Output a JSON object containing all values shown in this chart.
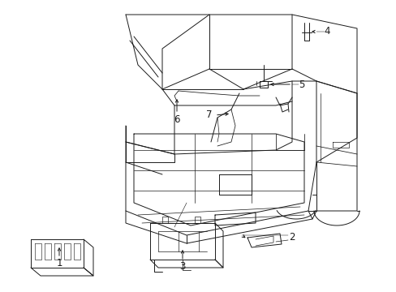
{
  "bg_color": "#ffffff",
  "line_color": "#1a1a1a",
  "lw": 0.7,
  "figsize": [
    4.89,
    3.6
  ],
  "dpi": 100
}
